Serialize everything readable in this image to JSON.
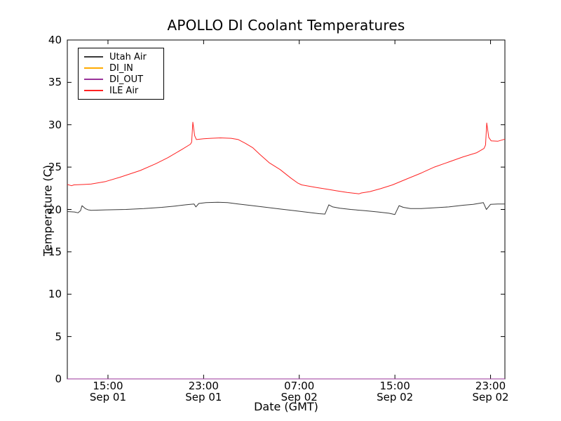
{
  "chart_data": {
    "type": "line",
    "title": "APOLLO DI Coolant Temperatures",
    "xlabel": "Date (GMT)",
    "ylabel": "Temperature (C)",
    "x_unit": "hours since Sep 01 00:00 GMT",
    "xlim": [
      11.6,
      48.2
    ],
    "ylim": [
      0,
      40
    ],
    "grid": false,
    "legend_position": "upper left",
    "frame_color": "#000000",
    "yticks": [
      0,
      5,
      10,
      15,
      20,
      25,
      30,
      35,
      40
    ],
    "xticks": [
      {
        "hour": 15,
        "time": "15:00",
        "date": "Sep 01"
      },
      {
        "hour": 23,
        "time": "23:00",
        "date": "Sep 01"
      },
      {
        "hour": 31,
        "time": "07:00",
        "date": "Sep 02"
      },
      {
        "hour": 39,
        "time": "15:00",
        "date": "Sep 02"
      },
      {
        "hour": 47,
        "time": "23:00",
        "date": "Sep 02"
      }
    ],
    "series": [
      {
        "name": "Utah Air",
        "color": "#3a3a3a",
        "points": [
          [
            11.6,
            19.75
          ],
          [
            12.2,
            19.7
          ],
          [
            12.5,
            19.6
          ],
          [
            12.7,
            19.85
          ],
          [
            12.83,
            20.45
          ],
          [
            13.1,
            20.1
          ],
          [
            13.35,
            19.95
          ],
          [
            13.6,
            19.9
          ],
          [
            14.8,
            19.95
          ],
          [
            16.5,
            20.0
          ],
          [
            18.0,
            20.1
          ],
          [
            19.5,
            20.25
          ],
          [
            20.6,
            20.4
          ],
          [
            21.5,
            20.55
          ],
          [
            22.2,
            20.65
          ],
          [
            22.35,
            20.3
          ],
          [
            22.6,
            20.7
          ],
          [
            23.2,
            20.8
          ],
          [
            24.2,
            20.85
          ],
          [
            25.0,
            20.8
          ],
          [
            25.9,
            20.65
          ],
          [
            27.1,
            20.45
          ],
          [
            28.25,
            20.25
          ],
          [
            29.4,
            20.05
          ],
          [
            30.6,
            19.85
          ],
          [
            31.8,
            19.65
          ],
          [
            32.65,
            19.5
          ],
          [
            33.15,
            19.45
          ],
          [
            33.47,
            20.55
          ],
          [
            33.8,
            20.3
          ],
          [
            34.4,
            20.15
          ],
          [
            35.3,
            20.0
          ],
          [
            36.5,
            19.85
          ],
          [
            37.6,
            19.7
          ],
          [
            38.5,
            19.55
          ],
          [
            39.0,
            19.4
          ],
          [
            39.35,
            20.45
          ],
          [
            39.7,
            20.25
          ],
          [
            40.3,
            20.1
          ],
          [
            41.2,
            20.1
          ],
          [
            42.3,
            20.2
          ],
          [
            43.5,
            20.3
          ],
          [
            44.7,
            20.5
          ],
          [
            45.55,
            20.6
          ],
          [
            46.4,
            20.8
          ],
          [
            46.65,
            20.0
          ],
          [
            47.0,
            20.6
          ],
          [
            47.6,
            20.65
          ],
          [
            48.2,
            20.65
          ]
        ]
      },
      {
        "name": "DI_IN",
        "color": "#ffaa00",
        "points": [
          [
            11.6,
            0
          ],
          [
            48.2,
            0
          ]
        ]
      },
      {
        "name": "DI_OUT",
        "color": "#993399",
        "points": [
          [
            11.6,
            0
          ],
          [
            48.2,
            0
          ]
        ]
      },
      {
        "name": "ILE Air",
        "color": "#ff2222",
        "points": [
          [
            11.6,
            22.95
          ],
          [
            11.95,
            22.8
          ],
          [
            12.15,
            22.9
          ],
          [
            13.0,
            22.95
          ],
          [
            13.6,
            23.0
          ],
          [
            14.8,
            23.3
          ],
          [
            16.0,
            23.8
          ],
          [
            17.7,
            24.6
          ],
          [
            19.0,
            25.4
          ],
          [
            20.0,
            26.1
          ],
          [
            21.2,
            27.1
          ],
          [
            21.9,
            27.7
          ],
          [
            22.0,
            27.95
          ],
          [
            22.1,
            30.3
          ],
          [
            22.25,
            28.7
          ],
          [
            22.4,
            28.25
          ],
          [
            23.0,
            28.35
          ],
          [
            23.6,
            28.4
          ],
          [
            24.4,
            28.45
          ],
          [
            25.3,
            28.4
          ],
          [
            25.9,
            28.25
          ],
          [
            26.5,
            27.8
          ],
          [
            27.1,
            27.3
          ],
          [
            27.7,
            26.5
          ],
          [
            28.5,
            25.5
          ],
          [
            29.4,
            24.7
          ],
          [
            30.3,
            23.7
          ],
          [
            30.9,
            23.1
          ],
          [
            31.2,
            22.9
          ],
          [
            32.4,
            22.6
          ],
          [
            33.5,
            22.35
          ],
          [
            34.1,
            22.2
          ],
          [
            35.0,
            22.0
          ],
          [
            36.0,
            21.85
          ],
          [
            36.2,
            21.95
          ],
          [
            36.9,
            22.1
          ],
          [
            37.8,
            22.45
          ],
          [
            38.8,
            22.9
          ],
          [
            40.0,
            23.6
          ],
          [
            41.2,
            24.3
          ],
          [
            42.3,
            25.0
          ],
          [
            43.5,
            25.6
          ],
          [
            44.7,
            26.2
          ],
          [
            45.85,
            26.7
          ],
          [
            46.45,
            27.2
          ],
          [
            46.58,
            27.6
          ],
          [
            46.68,
            30.2
          ],
          [
            46.85,
            28.5
          ],
          [
            47.05,
            28.1
          ],
          [
            47.6,
            28.05
          ],
          [
            48.2,
            28.3
          ]
        ]
      }
    ]
  }
}
